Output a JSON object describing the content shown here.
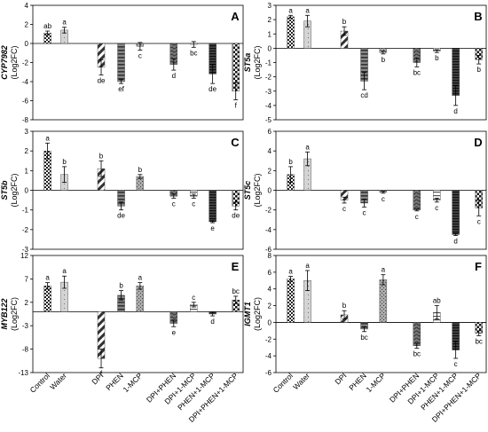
{
  "categories": [
    "Control",
    "Water",
    "DPI",
    "PHEN",
    "1-MCP",
    "DPI+PHEN",
    "DPI+1-MCP",
    "PHEN+1-MCP",
    "DPI+PHEN+1-MCP"
  ],
  "chart_data": [
    {
      "type": "bar",
      "letter": "A",
      "gene": "CYP7982",
      "unit": "(Log2FC)",
      "ylim": [
        -8,
        4
      ],
      "ticks": [
        -8,
        -6,
        -4,
        -2,
        0,
        2,
        4
      ],
      "values": [
        1.1,
        1.4,
        -2.5,
        -4.0,
        -0.3,
        -2.2,
        -0.1,
        -3.2,
        -5.0
      ],
      "errors": [
        0.2,
        0.3,
        0.8,
        0.2,
        0.4,
        0.6,
        0.3,
        1.0,
        0.9
      ],
      "labels": [
        "ab",
        "a",
        "de",
        "ef",
        "c",
        "d",
        "bc",
        "de",
        "f"
      ]
    },
    {
      "type": "bar",
      "letter": "B",
      "gene": "ST5a",
      "unit": "(Log2FC)",
      "ylim": [
        -5,
        3
      ],
      "ticks": [
        -5,
        -4,
        -3,
        -2,
        -1,
        0,
        1,
        2,
        3
      ],
      "values": [
        2.2,
        1.9,
        1.2,
        -2.3,
        -0.3,
        -1.0,
        -0.2,
        -3.3,
        -0.8
      ],
      "errors": [
        0.1,
        0.4,
        0.3,
        0.6,
        0.1,
        0.3,
        0.1,
        0.7,
        0.3
      ],
      "labels": [
        "a",
        "a",
        "b",
        "cd",
        "b",
        "bc",
        "b",
        "d",
        "b"
      ]
    },
    {
      "type": "bar",
      "letter": "C",
      "gene": "ST5b",
      "unit": "(Log2FC)",
      "ylim": [
        -3,
        3
      ],
      "ticks": [
        -3,
        -2,
        -1,
        0,
        1,
        2,
        3
      ],
      "values": [
        2.0,
        0.8,
        1.1,
        -0.8,
        0.7,
        -0.3,
        -0.3,
        -1.6,
        -0.8
      ],
      "errors": [
        0.4,
        0.4,
        0.4,
        0.2,
        0.1,
        0.1,
        0.1,
        0.05,
        0.2
      ],
      "labels": [
        "a",
        "b",
        "b",
        "de",
        "b",
        "c",
        "c",
        "e",
        "de"
      ]
    },
    {
      "type": "bar",
      "letter": "D",
      "gene": "ST5c",
      "unit": "(Log2FC)",
      "ylim": [
        -6,
        6
      ],
      "ticks": [
        -6,
        -4,
        -2,
        0,
        2,
        4,
        6
      ],
      "values": [
        1.6,
        3.2,
        -1.0,
        -1.3,
        -0.2,
        -2.0,
        -1.0,
        -4.5,
        -1.8
      ],
      "errors": [
        0.8,
        0.7,
        0.3,
        0.4,
        0.1,
        0.1,
        0.2,
        0.1,
        0.8
      ],
      "labels": [
        "b",
        "a",
        "c",
        "c",
        "c",
        "c",
        "c",
        "d",
        "c"
      ]
    },
    {
      "type": "bar",
      "letter": "E",
      "gene": "MYB122",
      "unit": "(Log2FC)",
      "ylim": [
        -13,
        12
      ],
      "ticks": [
        -13,
        -8,
        -3,
        2,
        7,
        12
      ],
      "values": [
        5.5,
        6.3,
        -10.0,
        3.5,
        5.5,
        -2.5,
        1.5,
        -0.5,
        2.5
      ],
      "errors": [
        0.7,
        1.3,
        2.0,
        1.0,
        0.7,
        0.7,
        0.5,
        0.4,
        0.8
      ],
      "labels": [
        "a",
        "a",
        "f",
        "b",
        "a",
        "e",
        "c",
        "d",
        "bc"
      ]
    },
    {
      "type": "bar",
      "letter": "F",
      "gene": "IGMT1",
      "unit": "(Log2FC)",
      "ylim": [
        -6,
        8
      ],
      "ticks": [
        -6,
        -4,
        -2,
        0,
        2,
        4,
        6,
        8
      ],
      "values": [
        5.2,
        5.0,
        0.9,
        -0.8,
        5.1,
        -2.8,
        1.2,
        -3.3,
        -1.3
      ],
      "errors": [
        0.3,
        1.2,
        0.5,
        0.3,
        0.6,
        0.3,
        0.8,
        1.0,
        0.3
      ],
      "labels": [
        "a",
        "a",
        "b",
        "bc",
        "a",
        "bc",
        "ab",
        "c",
        "bc"
      ]
    }
  ]
}
